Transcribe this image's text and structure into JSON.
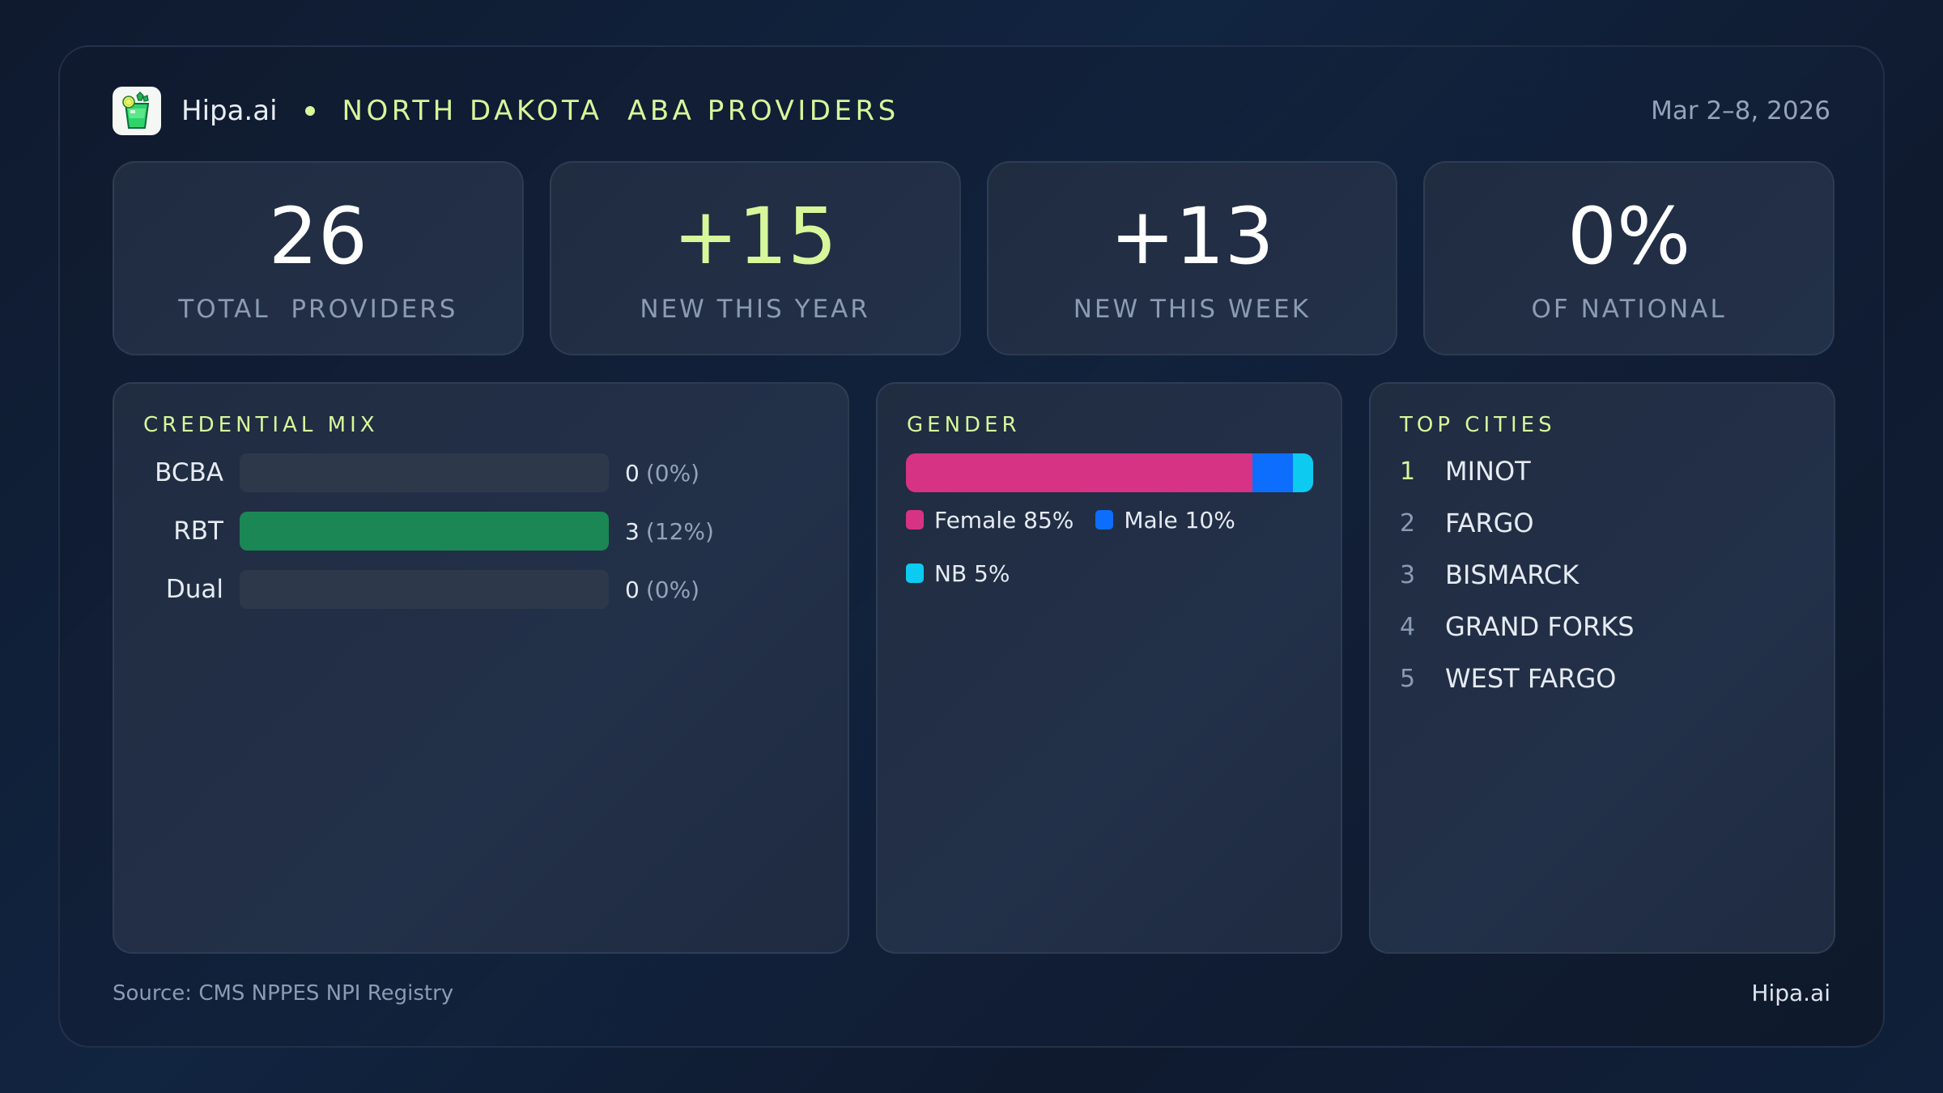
{
  "header": {
    "brand": "Hipa.ai",
    "title": "NORTH DAKOTA  ABA PROVIDERS",
    "date_range": "Mar 2–8, 2026",
    "logo_icon": "mojito-glass-icon"
  },
  "kpis": [
    {
      "value": "26",
      "label": "TOTAL  PROVIDERS"
    },
    {
      "value": "+15",
      "label": "NEW THIS YEAR"
    },
    {
      "value": "+13",
      "label": "NEW THIS WEEK"
    },
    {
      "value": "0%",
      "label": "OF NATIONAL"
    }
  ],
  "credential_mix": {
    "title": "CREDENTIAL MIX",
    "rows": [
      {
        "label": "BCBA",
        "count": "0",
        "pct": "(0%)",
        "fill_pct": 0
      },
      {
        "label": "RBT",
        "count": "3",
        "pct": "(12%)",
        "fill_pct": 100
      },
      {
        "label": "Dual",
        "count": "0",
        "pct": "(0%)",
        "fill_pct": 0
      }
    ],
    "bar_color": "#1a8754"
  },
  "gender": {
    "title": "GENDER",
    "segments": [
      {
        "label": "Female 85%",
        "pct": 85,
        "color": "#d63384"
      },
      {
        "label": "Male 10%",
        "pct": 10,
        "color": "#0d6efd"
      },
      {
        "label": "NB 5%",
        "pct": 5,
        "color": "#0dcaf0"
      }
    ]
  },
  "top_cities": {
    "title": "TOP CITIES",
    "items": [
      {
        "rank": "1",
        "name": "MINOT"
      },
      {
        "rank": "2",
        "name": "FARGO"
      },
      {
        "rank": "3",
        "name": "BISMARCK"
      },
      {
        "rank": "4",
        "name": "GRAND FORKS"
      },
      {
        "rank": "5",
        "name": "WEST FARGO"
      }
    ]
  },
  "footer": {
    "source": "Source: CMS NPPES NPI Registry",
    "brand": "Hipa.ai"
  },
  "colors": {
    "accent": "#d7f79b",
    "background": "#0f1a2e",
    "card": "#202c40",
    "muted_text": "#8b9bb4"
  }
}
